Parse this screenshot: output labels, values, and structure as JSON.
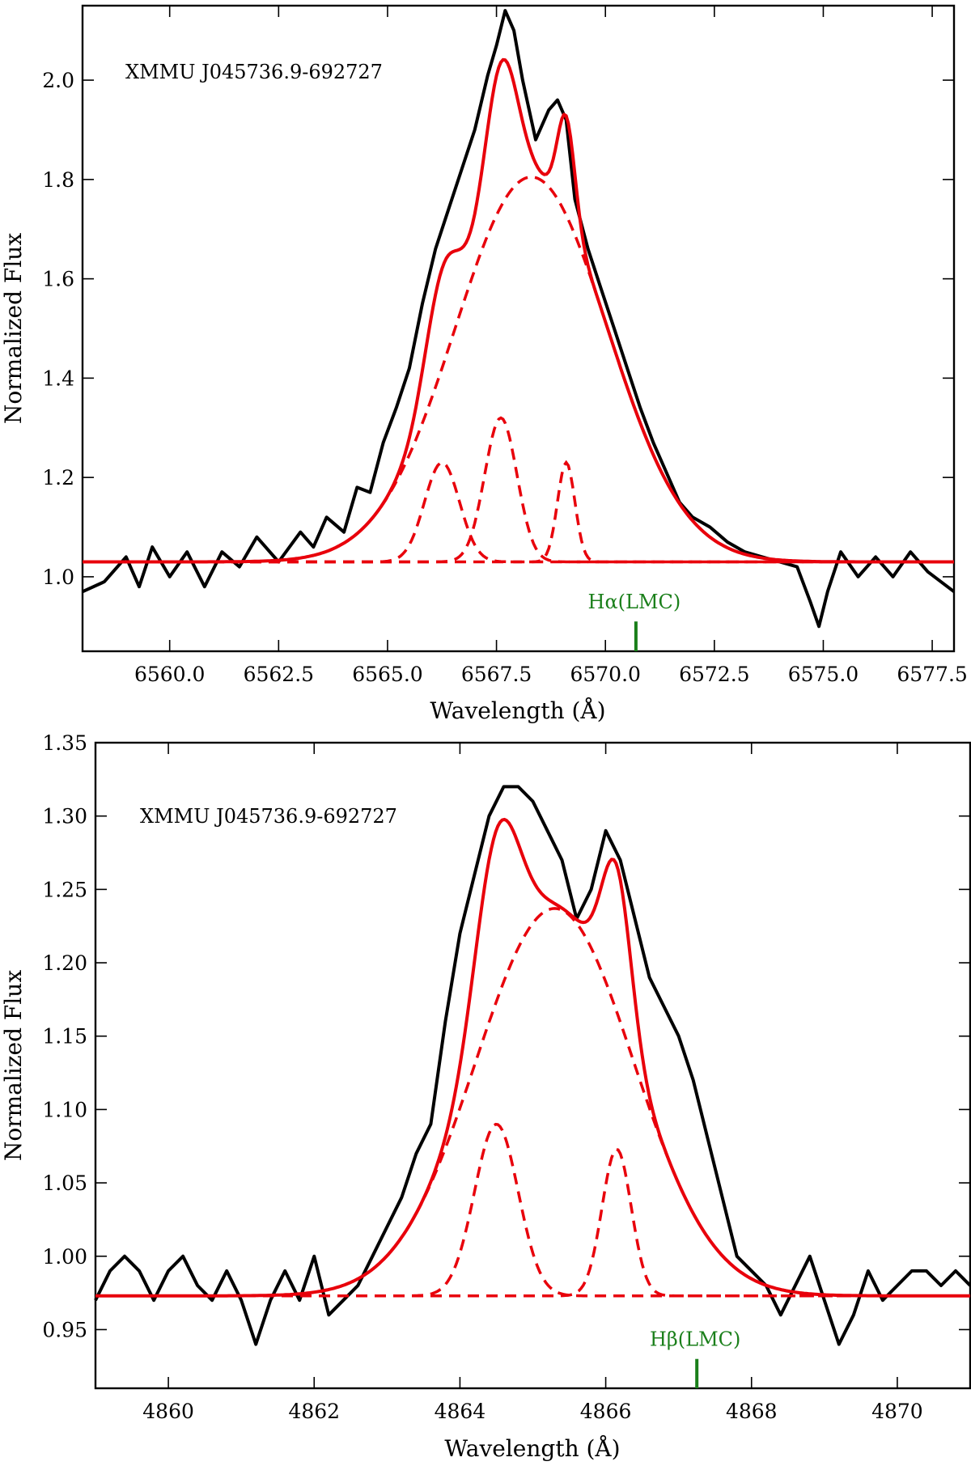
{
  "chart_data": [
    {
      "type": "line",
      "panel": "top",
      "title": "XMMU J045736.9-692727",
      "xlabel": "Wavelength (Å)",
      "ylabel": "Normalized Flux",
      "xlim": [
        6558.0,
        6578.0
      ],
      "ylim": [
        0.85,
        2.15
      ],
      "xticks": [
        6560.0,
        6562.5,
        6565.0,
        6567.5,
        6570.0,
        6572.5,
        6575.0,
        6577.5
      ],
      "xtick_labels": [
        "6560.0",
        "6562.5",
        "6565.0",
        "6567.5",
        "6570.0",
        "6572.5",
        "6575.0",
        "6577.5"
      ],
      "yticks": [
        1.0,
        1.2,
        1.4,
        1.6,
        1.8,
        2.0
      ],
      "ytick_labels": [
        "1.0",
        "1.2",
        "1.4",
        "1.6",
        "1.8",
        "2.0"
      ],
      "marker": {
        "label": "Hα(LMC)",
        "x": 6570.7,
        "y_from": 0.85,
        "y_to": 0.91,
        "color": "#1a7f1a"
      },
      "continuum": 1.03,
      "components": [
        {
          "name": "broad",
          "center": 6568.3,
          "amplitude": 0.775,
          "sigma": 1.75
        },
        {
          "name": "narrow-1",
          "center": 6566.25,
          "amplitude": 0.2,
          "sigma": 0.4
        },
        {
          "name": "narrow-2",
          "center": 6567.6,
          "amplitude": 0.29,
          "sigma": 0.37
        },
        {
          "name": "narrow-3",
          "center": 6569.1,
          "amplitude": 0.2,
          "sigma": 0.2
        }
      ],
      "series": [
        {
          "name": "observed",
          "color": "#000000",
          "x": [
            6558.0,
            6558.5,
            6559.0,
            6559.3,
            6559.6,
            6560.0,
            6560.4,
            6560.8,
            6561.2,
            6561.6,
            6562.0,
            6562.5,
            6563.0,
            6563.3,
            6563.6,
            6564.0,
            6564.3,
            6564.6,
            6564.9,
            6565.2,
            6565.5,
            6565.8,
            6566.1,
            6566.4,
            6566.7,
            6567.0,
            6567.3,
            6567.5,
            6567.7,
            6567.9,
            6568.1,
            6568.4,
            6568.7,
            6568.9,
            6569.1,
            6569.3,
            6569.6,
            6569.9,
            6570.2,
            6570.5,
            6570.8,
            6571.1,
            6571.4,
            6571.7,
            6572.0,
            6572.4,
            6572.8,
            6573.2,
            6573.6,
            6574.0,
            6574.4,
            6574.7,
            6574.9,
            6575.1,
            6575.4,
            6575.8,
            6576.2,
            6576.6,
            6577.0,
            6577.4,
            6578.0
          ],
          "values": [
            0.97,
            0.99,
            1.04,
            0.98,
            1.06,
            1.0,
            1.05,
            0.98,
            1.05,
            1.02,
            1.08,
            1.03,
            1.09,
            1.06,
            1.12,
            1.09,
            1.18,
            1.17,
            1.27,
            1.34,
            1.42,
            1.55,
            1.66,
            1.74,
            1.82,
            1.9,
            2.01,
            2.07,
            2.14,
            2.1,
            2.0,
            1.88,
            1.94,
            1.96,
            1.92,
            1.76,
            1.66,
            1.58,
            1.5,
            1.42,
            1.34,
            1.27,
            1.21,
            1.15,
            1.12,
            1.1,
            1.07,
            1.05,
            1.04,
            1.03,
            1.02,
            0.95,
            0.9,
            0.97,
            1.05,
            1.0,
            1.04,
            1.0,
            1.05,
            1.01,
            0.97
          ]
        }
      ]
    },
    {
      "type": "line",
      "panel": "bottom",
      "title": "XMMU J045736.9-692727",
      "xlabel": "Wavelength (Å)",
      "ylabel": "Normalized Flux",
      "xlim": [
        4859.0,
        4871.0
      ],
      "ylim": [
        0.91,
        1.35
      ],
      "xticks": [
        4860,
        4862,
        4864,
        4866,
        4868,
        4870
      ],
      "xtick_labels": [
        "4860",
        "4862",
        "4864",
        "4866",
        "4868",
        "4870"
      ],
      "yticks": [
        0.95,
        1.0,
        1.05,
        1.1,
        1.15,
        1.2,
        1.25,
        1.3,
        1.35
      ],
      "ytick_labels": [
        "0.95",
        "1.00",
        "1.05",
        "1.10",
        "1.15",
        "1.20",
        "1.25",
        "1.30",
        "1.35"
      ],
      "marker": {
        "label": "Hβ(LMC)",
        "x": 4867.25,
        "y_from": 0.91,
        "y_to": 0.93,
        "color": "#1a7f1a"
      },
      "continuum": 0.973,
      "components": [
        {
          "name": "broad",
          "center": 4865.3,
          "amplitude": 0.264,
          "sigma": 1.08
        },
        {
          "name": "narrow-1",
          "center": 4864.5,
          "amplitude": 0.117,
          "sigma": 0.3
        },
        {
          "name": "narrow-2",
          "center": 4866.15,
          "amplitude": 0.1,
          "sigma": 0.2
        }
      ],
      "series": [
        {
          "name": "observed",
          "color": "#000000",
          "x": [
            4859.0,
            4859.2,
            4859.4,
            4859.6,
            4859.8,
            4860.0,
            4860.2,
            4860.4,
            4860.6,
            4860.8,
            4861.0,
            4861.2,
            4861.4,
            4861.6,
            4861.8,
            4862.0,
            4862.2,
            4862.4,
            4862.6,
            4862.8,
            4863.0,
            4863.2,
            4863.4,
            4863.6,
            4863.8,
            4864.0,
            4864.2,
            4864.4,
            4864.6,
            4864.8,
            4865.0,
            4865.2,
            4865.4,
            4865.6,
            4865.8,
            4866.0,
            4866.2,
            4866.4,
            4866.6,
            4866.8,
            4867.0,
            4867.2,
            4867.4,
            4867.6,
            4867.8,
            4868.0,
            4868.2,
            4868.4,
            4868.6,
            4868.8,
            4869.0,
            4869.2,
            4869.4,
            4869.6,
            4869.8,
            4870.0,
            4870.2,
            4870.4,
            4870.6,
            4870.8,
            4871.0
          ],
          "values": [
            0.97,
            0.99,
            1.0,
            0.99,
            0.97,
            0.99,
            1.0,
            0.98,
            0.97,
            0.99,
            0.97,
            0.94,
            0.97,
            0.99,
            0.97,
            1.0,
            0.96,
            0.97,
            0.98,
            1.0,
            1.02,
            1.04,
            1.07,
            1.09,
            1.16,
            1.22,
            1.26,
            1.3,
            1.32,
            1.32,
            1.31,
            1.29,
            1.27,
            1.23,
            1.25,
            1.29,
            1.27,
            1.23,
            1.19,
            1.17,
            1.15,
            1.12,
            1.08,
            1.04,
            1.0,
            0.99,
            0.98,
            0.96,
            0.98,
            1.0,
            0.97,
            0.94,
            0.96,
            0.99,
            0.97,
            0.98,
            0.99,
            0.99,
            0.98,
            0.99,
            0.98
          ]
        }
      ]
    }
  ]
}
